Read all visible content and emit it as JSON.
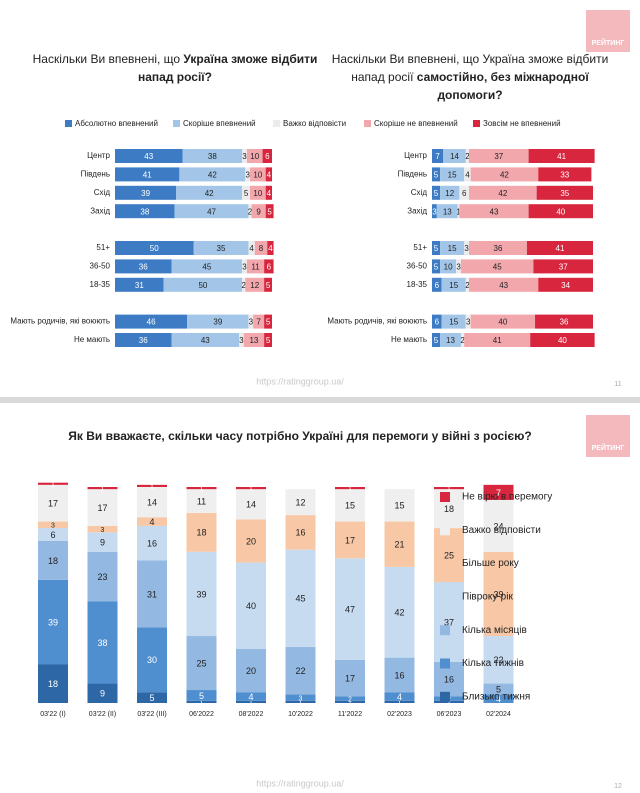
{
  "chart_data": [
    {
      "type": "bar",
      "orientation": "horizontal",
      "stacked": true,
      "title": [
        [
          {
            "text": "Наскільки Ви впевнені, що ",
            "bold": false
          },
          {
            "text": "Україна зможе відбити",
            "bold": true
          }
        ],
        [
          {
            "text": "напад росії?",
            "bold": true
          }
        ]
      ],
      "categories": [
        "Центр",
        "Південь",
        "Схід",
        "Захід",
        null,
        "51+",
        "36-50",
        "18-35",
        null,
        "Мають родичів, які воюють",
        "Не мають"
      ],
      "xlim": [
        0,
        100
      ],
      "series": [
        {
          "name": "Абсолютно впевнений",
          "color": "#3d7cc4",
          "values": [
            43,
            41,
            39,
            38,
            null,
            50,
            36,
            31,
            null,
            46,
            36
          ]
        },
        {
          "name": "Скоріше впевнений",
          "color": "#a3c6e8",
          "values": [
            38,
            42,
            42,
            47,
            null,
            35,
            45,
            50,
            null,
            39,
            43
          ]
        },
        {
          "name": "Важко відповісти",
          "color": "#ececec",
          "values": [
            3,
            3,
            5,
            2,
            null,
            4,
            3,
            2,
            null,
            3,
            3
          ]
        },
        {
          "name": "Скоріше не впевнений",
          "color": "#f2a7ad",
          "values": [
            10,
            10,
            10,
            9,
            null,
            8,
            11,
            12,
            null,
            7,
            13
          ]
        },
        {
          "name": "Зовсім не впевнений",
          "color": "#d7263d",
          "values": [
            6,
            4,
            4,
            5,
            null,
            4,
            6,
            5,
            null,
            5,
            5
          ]
        }
      ]
    },
    {
      "type": "bar",
      "orientation": "horizontal",
      "stacked": true,
      "title": [
        [
          {
            "text": "Наскільки Ви впевнені, що Україна зможе відбити",
            "bold": false
          }
        ],
        [
          {
            "text": "напад росії ",
            "bold": false
          },
          {
            "text": "самостійно, без міжнародної",
            "bold": true
          }
        ],
        [
          {
            "text": "допомоги?",
            "bold": true
          }
        ]
      ],
      "categories": [
        "Центр",
        "Південь",
        "Схід",
        "Захід",
        null,
        "51+",
        "36-50",
        "18-35",
        null,
        "Мають родичів, які воюють",
        "Не мають"
      ],
      "xlim": [
        0,
        100
      ],
      "series": [
        {
          "color": "#3d7cc4",
          "values": [
            7,
            5,
            5,
            3,
            null,
            5,
            5,
            6,
            null,
            6,
            5
          ]
        },
        {
          "color": "#a3c6e8",
          "values": [
            14,
            15,
            12,
            13,
            null,
            15,
            10,
            15,
            null,
            15,
            13
          ]
        },
        {
          "color": "#ececec",
          "values": [
            2,
            4,
            6,
            1,
            null,
            3,
            3,
            2,
            null,
            3,
            2
          ]
        },
        {
          "color": "#f2a7ad",
          "values": [
            37,
            42,
            42,
            43,
            null,
            36,
            45,
            43,
            null,
            40,
            41
          ]
        },
        {
          "color": "#d7263d",
          "values": [
            41,
            33,
            35,
            40,
            null,
            41,
            37,
            34,
            null,
            36,
            40
          ]
        }
      ]
    },
    {
      "type": "bar",
      "orientation": "vertical",
      "stacked": true,
      "title": [
        [
          {
            "text": "Як Ви вважаєте, скільки часу потрібно Україні для перемоги у війні з росією?",
            "bold": true
          }
        ]
      ],
      "categories": [
        "03'22 (I)",
        "03'22 (II)",
        "03'22 (III)",
        "06'2022",
        "08'2022",
        "10'2022",
        "11'2022",
        "02'2023",
        "06'2023",
        "02'2024"
      ],
      "ylim": [
        0,
        100
      ],
      "series": [
        {
          "name": "Близько тижня",
          "color": "#2d67a6",
          "values": [
            18,
            9,
            5,
            1,
            1,
            1,
            1,
            1,
            1,
            null
          ]
        },
        {
          "name": "Кілька тижнів",
          "color": "#4f8ecf",
          "values": [
            39,
            38,
            30,
            5,
            4,
            3,
            2,
            4,
            2,
            4
          ]
        },
        {
          "name": "Кілька місяців",
          "color": "#93b8e2",
          "values": [
            18,
            23,
            31,
            25,
            20,
            22,
            17,
            16,
            16,
            5
          ]
        },
        {
          "name": "Півроку-рік",
          "color": "#c6dbf0",
          "values": [
            6,
            9,
            16,
            39,
            40,
            45,
            47,
            42,
            37,
            22
          ]
        },
        {
          "name": "Більше року",
          "color": "#f8c8a6",
          "values": [
            3,
            3,
            4,
            18,
            20,
            16,
            17,
            21,
            25,
            39
          ]
        },
        {
          "name": "Важко відповісти",
          "color": "#efefef",
          "values": [
            17,
            17,
            14,
            11,
            14,
            12,
            15,
            15,
            18,
            24
          ]
        },
        {
          "name": "Не вірю в перемогу",
          "color": "#d7263d",
          "values": [
            1,
            1,
            1,
            1,
            1,
            null,
            1,
            null,
            1,
            7
          ]
        }
      ]
    }
  ],
  "pages": [
    {
      "logo": "РЕЙТИНГ",
      "url": "https://ratinggroup.ua/",
      "page_number": "11"
    },
    {
      "logo": "РЕЙТИНГ",
      "url": "https://ratinggroup.ua/",
      "page_number": "12"
    }
  ]
}
